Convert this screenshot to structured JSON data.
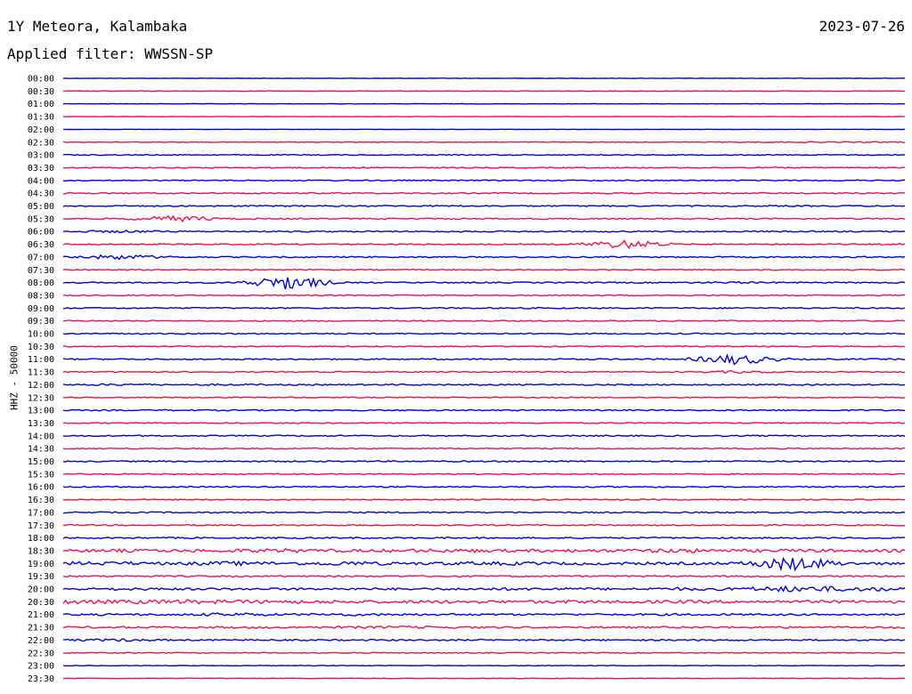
{
  "header": {
    "station": "1Y Meteora, Kalambaka",
    "date": "2023-07-26",
    "filter": "Applied filter: WWSSN-SP"
  },
  "chart_data": {
    "type": "line",
    "title": "1Y Meteora, Kalambaka",
    "ylabel": "HHZ - 50000",
    "colors": [
      "#0000dd",
      "#ee1144"
    ],
    "tick_labels": [
      "00:00",
      "00:30",
      "01:00",
      "01:30",
      "02:00",
      "02:30",
      "03:00",
      "03:30",
      "04:00",
      "04:30",
      "05:00",
      "05:30",
      "06:00",
      "06:30",
      "07:00",
      "07:30",
      "08:00",
      "08:30",
      "09:00",
      "09:30",
      "10:00",
      "10:30",
      "11:00",
      "11:30",
      "12:00",
      "12:30",
      "13:00",
      "13:30",
      "14:00",
      "14:30",
      "15:00",
      "15:30",
      "16:00",
      "16:30",
      "17:00",
      "17:30",
      "18:00",
      "18:30",
      "19:00",
      "19:30",
      "20:00",
      "20:30",
      "21:00",
      "21:30",
      "22:00",
      "22:30",
      "23:00",
      "23:30"
    ],
    "series": [
      {
        "values": [
          0.2,
          0.2,
          0.2,
          0.2,
          0.2,
          0.2,
          0.2,
          0.2,
          0.2,
          0.2,
          0.2,
          0.2,
          0.2,
          0.2,
          0.2,
          0.2
        ]
      },
      {
        "values": [
          0.3,
          0.3,
          0.3,
          0.3,
          0.3,
          0.3,
          0.3,
          0.3,
          0.3,
          0.3,
          0.3,
          0.3,
          0.3,
          0.3,
          0.3,
          0.3
        ]
      },
      {
        "values": [
          0.2,
          0.2,
          0.2,
          0.2,
          0.2,
          0.2,
          0.2,
          0.2,
          0.2,
          0.2,
          0.2,
          0.2,
          0.2,
          0.2,
          0.2,
          0.2
        ]
      },
      {
        "values": [
          0.2,
          0.2,
          0.2,
          0.2,
          0.2,
          0.2,
          0.2,
          0.2,
          0.2,
          0.2,
          0.2,
          0.2,
          0.2,
          0.2,
          0.2,
          0.2
        ]
      },
      {
        "values": [
          0.15,
          0.15,
          0.15,
          0.15,
          0.15,
          0.15,
          0.15,
          0.15,
          0.15,
          0.15,
          0.15,
          0.15,
          0.15,
          0.15,
          0.15,
          0.15
        ]
      },
      {
        "values": [
          0.3,
          0.3,
          0.3,
          0.3,
          0.3,
          0.3,
          0.3,
          0.3,
          0.3,
          0.3,
          0.3,
          0.3,
          0.5,
          0.5,
          0.6,
          0.5
        ]
      },
      {
        "values": [
          0.6,
          0.5,
          0.5,
          0.5,
          0.5,
          0.5,
          0.5,
          0.5,
          0.5,
          0.5,
          0.5,
          0.5,
          0.5,
          0.5,
          0.5,
          0.5
        ]
      },
      {
        "values": [
          0.6,
          0.6,
          0.6,
          0.6,
          0.6,
          0.6,
          0.6,
          0.6,
          0.6,
          0.6,
          0.6,
          0.6,
          0.6,
          0.6,
          0.6,
          0.6
        ]
      },
      {
        "values": [
          0.6,
          0.6,
          0.6,
          0.6,
          0.6,
          0.6,
          0.6,
          0.6,
          0.6,
          0.6,
          0.6,
          0.6,
          0.6,
          0.6,
          0.6,
          0.6
        ]
      },
      {
        "values": [
          0.7,
          0.7,
          0.7,
          0.7,
          0.7,
          0.7,
          0.7,
          0.7,
          0.7,
          0.7,
          0.7,
          0.7,
          0.7,
          0.7,
          0.7,
          0.7
        ]
      },
      {
        "values": [
          0.7,
          0.7,
          0.7,
          0.7,
          0.7,
          0.7,
          0.7,
          0.7,
          0.7,
          0.7,
          0.7,
          0.7,
          0.7,
          0.7,
          0.7,
          0.7
        ]
      },
      {
        "values": [
          0.7,
          0.7,
          3.5,
          0.8,
          0.7,
          0.7,
          0.7,
          0.7,
          0.7,
          0.7,
          0.7,
          0.7,
          0.7,
          0.7,
          0.7,
          0.7
        ]
      },
      {
        "values": [
          0.7,
          1.5,
          0.8,
          0.7,
          0.7,
          0.7,
          0.7,
          0.7,
          0.7,
          0.7,
          0.7,
          0.7,
          0.7,
          0.7,
          0.7,
          0.7
        ]
      },
      {
        "values": [
          0.7,
          0.7,
          0.7,
          0.7,
          0.7,
          0.7,
          0.7,
          0.7,
          0.7,
          0.7,
          5.0,
          0.7,
          0.7,
          0.7,
          0.7,
          0.7
        ]
      },
      {
        "values": [
          0.8,
          3.0,
          0.8,
          0.7,
          0.7,
          0.7,
          0.7,
          0.7,
          0.7,
          0.7,
          0.7,
          0.7,
          0.7,
          0.7,
          0.7,
          0.7
        ]
      },
      {
        "values": [
          0.6,
          0.6,
          0.6,
          0.6,
          0.6,
          0.6,
          0.6,
          0.6,
          0.6,
          0.6,
          0.6,
          0.6,
          0.6,
          0.6,
          0.6,
          0.6
        ]
      },
      {
        "values": [
          0.7,
          0.7,
          0.7,
          0.7,
          8.0,
          0.7,
          0.7,
          0.7,
          0.7,
          0.7,
          0.7,
          0.7,
          1.2,
          0.7,
          0.7,
          0.7
        ]
      },
      {
        "values": [
          0.6,
          0.6,
          0.6,
          0.6,
          0.6,
          0.6,
          0.6,
          0.6,
          0.6,
          0.6,
          0.6,
          0.6,
          0.6,
          0.6,
          0.6,
          0.6
        ]
      },
      {
        "values": [
          0.7,
          0.7,
          0.7,
          0.7,
          0.7,
          0.7,
          0.7,
          0.7,
          0.7,
          0.7,
          0.7,
          0.7,
          0.7,
          0.7,
          0.7,
          0.7
        ]
      },
      {
        "values": [
          0.6,
          0.6,
          0.6,
          0.6,
          0.6,
          0.6,
          0.6,
          0.6,
          0.6,
          0.6,
          0.6,
          0.6,
          0.6,
          0.6,
          0.6,
          0.6
        ]
      },
      {
        "values": [
          0.7,
          0.7,
          0.7,
          0.7,
          0.7,
          0.7,
          0.7,
          0.7,
          0.7,
          0.7,
          0.7,
          0.7,
          0.7,
          0.7,
          0.7,
          0.7
        ]
      },
      {
        "values": [
          0.6,
          0.6,
          0.6,
          0.6,
          0.6,
          0.6,
          0.6,
          0.6,
          0.6,
          0.6,
          0.6,
          0.6,
          0.6,
          0.6,
          0.6,
          0.6
        ]
      },
      {
        "values": [
          0.7,
          0.7,
          0.7,
          0.7,
          0.7,
          0.7,
          0.7,
          0.7,
          0.7,
          0.7,
          0.7,
          0.7,
          6.0,
          0.7,
          0.7,
          0.7
        ]
      },
      {
        "values": [
          0.6,
          0.6,
          0.6,
          0.6,
          0.6,
          0.6,
          0.6,
          0.6,
          0.6,
          0.6,
          0.6,
          0.6,
          1.5,
          0.6,
          0.6,
          0.6
        ]
      },
      {
        "values": [
          0.7,
          1.2,
          0.7,
          1.0,
          0.7,
          0.7,
          0.7,
          0.7,
          0.7,
          0.7,
          0.7,
          0.7,
          0.7,
          0.7,
          0.7,
          0.7
        ]
      },
      {
        "values": [
          0.6,
          0.6,
          0.6,
          0.6,
          0.6,
          0.6,
          0.6,
          0.6,
          0.6,
          0.6,
          0.6,
          0.6,
          0.6,
          0.6,
          0.6,
          0.6
        ]
      },
      {
        "values": [
          0.7,
          0.7,
          0.7,
          0.7,
          0.7,
          0.7,
          0.7,
          0.7,
          0.7,
          0.7,
          0.7,
          0.7,
          0.7,
          0.7,
          0.7,
          0.7
        ]
      },
      {
        "values": [
          0.6,
          0.6,
          0.6,
          0.6,
          0.6,
          0.6,
          0.6,
          0.6,
          0.6,
          0.6,
          0.6,
          0.6,
          0.6,
          0.6,
          0.6,
          0.6
        ]
      },
      {
        "values": [
          0.7,
          0.7,
          0.7,
          0.7,
          0.7,
          0.7,
          0.7,
          0.7,
          0.7,
          0.7,
          0.7,
          0.7,
          0.7,
          0.7,
          0.7,
          0.7
        ]
      },
      {
        "values": [
          0.6,
          0.6,
          0.6,
          0.6,
          0.6,
          0.6,
          0.6,
          0.6,
          0.6,
          0.6,
          0.6,
          0.6,
          0.6,
          0.6,
          0.6,
          0.6
        ]
      },
      {
        "values": [
          0.7,
          0.7,
          0.7,
          0.7,
          0.7,
          0.7,
          0.7,
          0.7,
          0.7,
          0.7,
          0.7,
          0.7,
          0.7,
          0.7,
          0.7,
          0.7
        ]
      },
      {
        "values": [
          0.6,
          0.6,
          0.6,
          0.6,
          0.6,
          0.6,
          0.6,
          0.6,
          0.6,
          0.6,
          0.6,
          0.6,
          0.6,
          0.6,
          0.6,
          0.6
        ]
      },
      {
        "values": [
          0.7,
          0.7,
          0.7,
          0.7,
          0.7,
          0.7,
          0.7,
          0.7,
          0.7,
          0.7,
          0.7,
          0.7,
          0.7,
          0.7,
          0.7,
          0.7
        ]
      },
      {
        "values": [
          0.6,
          0.6,
          0.6,
          0.6,
          0.6,
          0.6,
          0.6,
          0.6,
          0.6,
          0.6,
          0.6,
          0.6,
          0.6,
          0.6,
          0.6,
          0.6
        ]
      },
      {
        "values": [
          0.7,
          0.7,
          0.7,
          0.7,
          0.7,
          0.7,
          0.7,
          0.7,
          0.7,
          0.7,
          0.7,
          0.7,
          0.7,
          0.7,
          0.7,
          0.7
        ]
      },
      {
        "values": [
          0.7,
          0.7,
          0.7,
          0.7,
          0.7,
          0.7,
          0.7,
          0.7,
          0.7,
          0.7,
          0.7,
          0.7,
          0.7,
          0.7,
          0.7,
          0.7
        ]
      },
      {
        "values": [
          0.8,
          0.8,
          0.8,
          0.8,
          0.8,
          0.8,
          0.8,
          0.8,
          0.8,
          0.8,
          0.8,
          0.8,
          0.8,
          0.8,
          0.8,
          0.8
        ]
      },
      {
        "values": [
          1.5,
          1.8,
          1.5,
          1.8,
          2.2,
          1.5,
          1.8,
          2.0,
          1.5,
          1.8,
          1.5,
          2.5,
          1.5,
          1.8,
          1.5,
          1.5
        ]
      },
      {
        "values": [
          2.0,
          2.0,
          1.5,
          2.5,
          1.5,
          2.5,
          1.5,
          1.8,
          2.0,
          1.5,
          1.5,
          1.5,
          1.5,
          8.0,
          1.5,
          1.5
        ]
      },
      {
        "values": [
          0.8,
          0.8,
          0.8,
          0.8,
          0.8,
          0.8,
          0.8,
          0.8,
          0.8,
          0.8,
          0.8,
          0.8,
          0.8,
          0.8,
          0.8,
          0.8
        ]
      },
      {
        "values": [
          1.2,
          1.5,
          1.2,
          1.2,
          1.2,
          1.2,
          1.2,
          1.2,
          1.5,
          1.5,
          1.2,
          1.8,
          1.5,
          3.5,
          2.5,
          2.0
        ]
      },
      {
        "values": [
          2.5,
          2.0,
          2.5,
          2.0,
          1.8,
          1.8,
          1.5,
          1.8,
          1.5,
          1.8,
          1.5,
          1.8,
          1.5,
          1.5,
          1.5,
          1.5
        ]
      },
      {
        "values": [
          1.0,
          1.2,
          1.0,
          2.0,
          1.0,
          1.5,
          1.2,
          1.2,
          1.0,
          1.0,
          1.0,
          1.2,
          1.0,
          1.0,
          1.0,
          1.0
        ]
      },
      {
        "values": [
          1.0,
          1.0,
          1.0,
          1.2,
          1.0,
          1.2,
          1.5,
          1.2,
          1.0,
          1.0,
          1.0,
          1.0,
          1.0,
          1.0,
          1.0,
          1.0
        ]
      },
      {
        "values": [
          1.0,
          1.5,
          0.8,
          0.8,
          0.8,
          0.8,
          0.8,
          0.8,
          0.8,
          0.8,
          0.8,
          0.8,
          0.8,
          0.8,
          0.8,
          0.8
        ]
      },
      {
        "values": [
          0.5,
          0.5,
          0.5,
          0.5,
          0.5,
          0.5,
          0.5,
          0.5,
          0.5,
          0.5,
          0.5,
          0.5,
          0.5,
          0.5,
          0.5,
          0.5
        ]
      },
      {
        "values": [
          0.3,
          0.3,
          0.3,
          0.3,
          0.3,
          0.3,
          0.3,
          0.3,
          0.3,
          0.3,
          0.3,
          0.3,
          0.3,
          0.3,
          0.3,
          0.3
        ]
      },
      {
        "values": [
          0.3,
          0.3,
          0.3,
          0.3,
          0.3,
          0.3,
          0.3,
          0.3,
          0.3,
          0.3,
          0.3,
          0.3,
          0.3,
          0.3,
          0.3,
          0.3
        ]
      }
    ]
  }
}
